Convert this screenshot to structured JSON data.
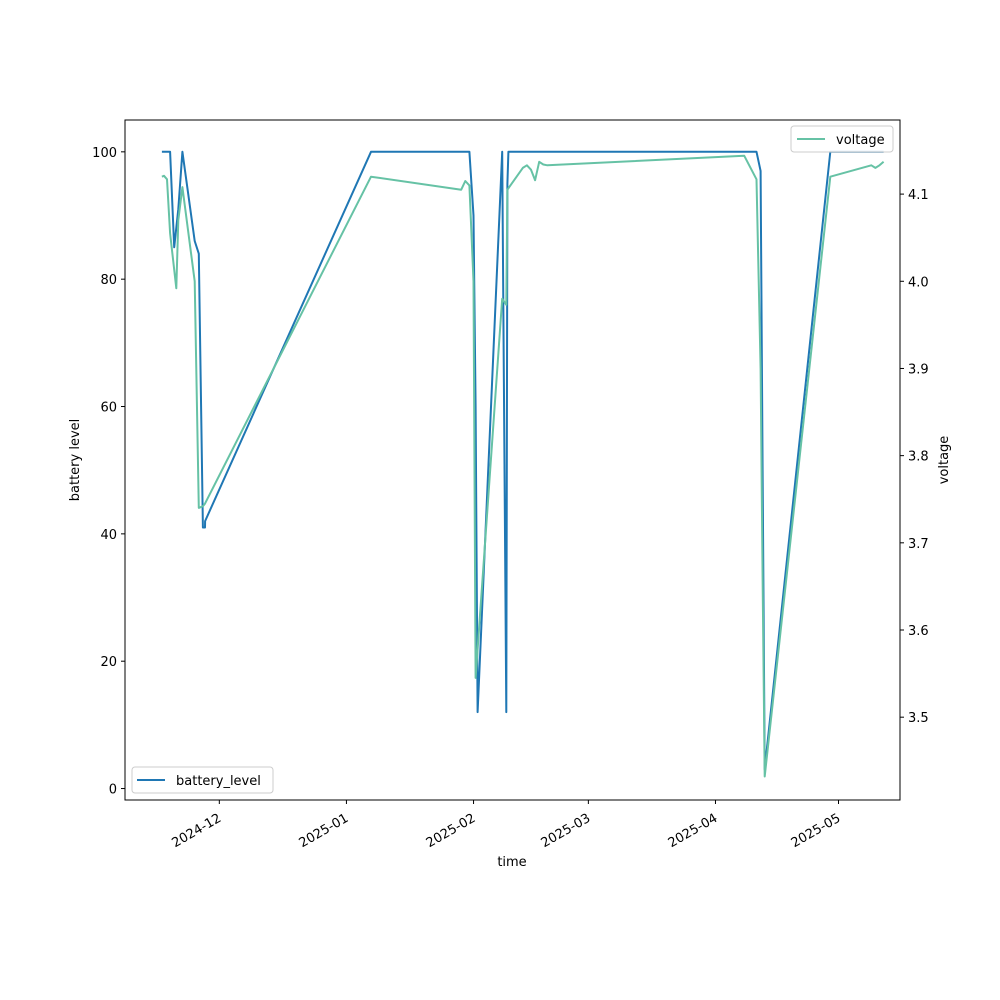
{
  "chart_data": {
    "type": "line",
    "xlabel": "time",
    "ylabel": "battery level",
    "ylabel_right": "voltage",
    "x_ticks": [
      "2024-12",
      "2025-01",
      "2025-02",
      "2025-03",
      "2025-04",
      "2025-05"
    ],
    "y_ticks_left": [
      "0",
      "20",
      "40",
      "60",
      "80",
      "100"
    ],
    "y_ticks_right": [
      "3.5",
      "3.6",
      "3.7",
      "3.8",
      "3.9",
      "4.0",
      "4.1"
    ],
    "xlim": [
      "2024-11-08",
      "2025-05-16"
    ],
    "ylim_left": [
      -1.8,
      105
    ],
    "ylim_right": [
      3.405,
      4.185
    ],
    "grid": false,
    "series": [
      {
        "name": "battery_level",
        "axis": "left",
        "color": "#1f77b4",
        "legend_position": "lower-left",
        "x": [
          "2024-11-17T00:00",
          "2024-11-18T00:00",
          "2024-11-19T00:00",
          "2024-11-20T00:00",
          "2024-11-21T00:00",
          "2024-11-22T00:00",
          "2024-11-25T00:00",
          "2024-11-26T00:00",
          "2024-11-27T00:00",
          "2024-11-27T12:00",
          "2024-11-27T13:00",
          "2025-01-07T00:00",
          "2025-01-31T00:00",
          "2025-02-01T00:00",
          "2025-02-01T12:00",
          "2025-02-02T00:00",
          "2025-02-08T00:00",
          "2025-02-09T00:00",
          "2025-02-09T06:00",
          "2025-02-09T12:00",
          "2025-04-11T00:00",
          "2025-04-12T00:00",
          "2025-04-12T12:00",
          "2025-04-13T00:00",
          "2025-04-29T00:00",
          "2025-05-12T00:00"
        ],
        "values": [
          100,
          100,
          100,
          85,
          91,
          100,
          86,
          84,
          41,
          41,
          42,
          100,
          100,
          90,
          60,
          12,
          100,
          12,
          95,
          100,
          100,
          97,
          50,
          3,
          100,
          100
        ]
      },
      {
        "name": "voltage",
        "axis": "right",
        "color": "#66c2a5",
        "legend_position": "upper-right",
        "x": [
          "2024-11-17T00:00",
          "2024-11-17T12:00",
          "2024-11-18T06:00",
          "2024-11-19T00:00",
          "2024-11-20T12:00",
          "2024-11-21T00:00",
          "2024-11-22T00:00",
          "2024-11-25T00:00",
          "2024-11-26T00:00",
          "2024-11-27T00:00",
          "2024-11-27T12:00",
          "2025-01-07T00:00",
          "2025-01-29T00:00",
          "2025-01-30T00:00",
          "2025-01-31T00:00",
          "2025-02-01T00:00",
          "2025-02-01T12:00",
          "2025-02-08T00:00",
          "2025-02-09T00:00",
          "2025-02-09T06:00",
          "2025-02-10T00:00",
          "2025-02-13T00:00",
          "2025-02-14T00:00",
          "2025-02-15T00:00",
          "2025-02-16T00:00",
          "2025-02-17T00:00",
          "2025-02-18T00:00",
          "2025-02-19T00:00",
          "2025-04-08T00:00",
          "2025-04-11T00:00",
          "2025-04-12T00:00",
          "2025-04-12T12:00",
          "2025-04-13T00:00",
          "2025-04-29T00:00",
          "2025-05-09T00:00",
          "2025-05-10T00:00",
          "2025-05-11T00:00",
          "2025-05-12T00:00"
        ],
        "values": [
          4.12,
          4.121,
          4.117,
          4.055,
          3.992,
          4.07,
          4.108,
          4.0,
          3.74,
          3.742,
          3.745,
          4.12,
          4.105,
          4.115,
          4.11,
          4.0,
          3.545,
          3.98,
          3.973,
          4.105,
          4.11,
          4.13,
          4.133,
          4.128,
          4.116,
          4.137,
          4.134,
          4.133,
          4.144,
          4.117,
          3.9,
          3.66,
          3.432,
          4.12,
          4.133,
          4.13,
          4.133,
          4.137
        ]
      }
    ]
  }
}
